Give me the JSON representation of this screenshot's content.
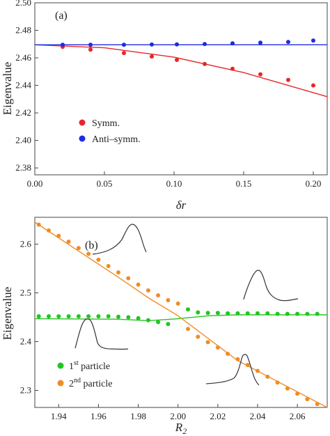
{
  "chart_data": [
    {
      "type": "scatter",
      "panel_label": "(a)",
      "xlabel": "δr",
      "ylabel": "Eigenvalue",
      "xlim": [
        0.0,
        0.21
      ],
      "ylim": [
        2.375,
        2.5
      ],
      "x_ticks": [
        0.0,
        0.05,
        0.1,
        0.15,
        0.2
      ],
      "x_tick_labels": [
        "0.00",
        "0.05",
        "0.10",
        "0.15",
        "0.20"
      ],
      "y_ticks": [
        2.38,
        2.4,
        2.42,
        2.44,
        2.46,
        2.48,
        2.5
      ],
      "y_tick_labels": [
        "2.38",
        "2.40",
        "2.42",
        "2.44",
        "2.46",
        "2.48",
        "2.50"
      ],
      "legend_position": "middle-left",
      "series": [
        {
          "name": "Symm.",
          "color": "#e8262a",
          "points": [
            [
              0.02,
              2.468
            ],
            [
              0.04,
              2.466
            ],
            [
              0.064,
              2.4635
            ],
            [
              0.084,
              2.461
            ],
            [
              0.102,
              2.4585
            ],
            [
              0.122,
              2.4555
            ],
            [
              0.142,
              2.452
            ],
            [
              0.162,
              2.448
            ],
            [
              0.182,
              2.444
            ],
            [
              0.2,
              2.44
            ]
          ]
        },
        {
          "name": "Anti–symm.",
          "color": "#1f2be0",
          "points": [
            [
              0.02,
              2.4695
            ],
            [
              0.04,
              2.4695
            ],
            [
              0.064,
              2.4695
            ],
            [
              0.084,
              2.4697
            ],
            [
              0.102,
              2.4698
            ],
            [
              0.122,
              2.47
            ],
            [
              0.142,
              2.4705
            ],
            [
              0.162,
              2.471
            ],
            [
              0.182,
              2.4715
            ],
            [
              0.2,
              2.4725
            ]
          ]
        }
      ],
      "fit_lines": [
        {
          "series": "Symm.",
          "color": "#e8262a",
          "x": [
            0.0,
            0.05,
            0.1,
            0.15,
            0.21
          ],
          "y": [
            2.4695,
            2.4673,
            2.4605,
            2.4493,
            2.4318
          ]
        },
        {
          "series": "Anti–symm.",
          "color": "#1f2be0",
          "x": [
            0.0,
            0.21
          ],
          "y": [
            2.4695,
            2.4695
          ]
        }
      ]
    },
    {
      "type": "scatter",
      "panel_label": "(b)",
      "xlabel": "R2",
      "ylabel": "Eigenvalue",
      "xlim": [
        1.928,
        2.075
      ],
      "ylim": [
        2.265,
        2.655
      ],
      "x_ticks": [
        1.94,
        1.96,
        1.98,
        2.0,
        2.02,
        2.04,
        2.06
      ],
      "x_tick_labels": [
        "1.94",
        "1.96",
        "1.98",
        "2.00",
        "2.02",
        "2.04",
        "2.06"
      ],
      "y_ticks": [
        2.3,
        2.4,
        2.5,
        2.6
      ],
      "y_tick_labels": [
        "2.3",
        "2.4",
        "2.5",
        "2.6"
      ],
      "legend_position": "bottom-left",
      "series": [
        {
          "name": "1st particle",
          "legend_main": "1",
          "legend_sup": "st",
          "legend_rest": " particle",
          "color": "#22c520",
          "points": [
            [
              1.93,
              2.452
            ],
            [
              1.935,
              2.452
            ],
            [
              1.94,
              2.452
            ],
            [
              1.945,
              2.452
            ],
            [
              1.95,
              2.452
            ],
            [
              1.955,
              2.452
            ],
            [
              1.96,
              2.452
            ],
            [
              1.965,
              2.452
            ],
            [
              1.97,
              2.451
            ],
            [
              1.975,
              2.45
            ],
            [
              1.98,
              2.448
            ],
            [
              1.985,
              2.444
            ],
            [
              1.99,
              2.44
            ],
            [
              1.995,
              2.436
            ],
            [
              2.005,
              2.466
            ],
            [
              2.01,
              2.46
            ],
            [
              2.015,
              2.459
            ],
            [
              2.02,
              2.459
            ],
            [
              2.025,
              2.458
            ],
            [
              2.03,
              2.458
            ],
            [
              2.035,
              2.458
            ],
            [
              2.04,
              2.458
            ],
            [
              2.045,
              2.458
            ],
            [
              2.05,
              2.457
            ],
            [
              2.055,
              2.457
            ],
            [
              2.06,
              2.457
            ],
            [
              2.065,
              2.457
            ],
            [
              2.07,
              2.457
            ]
          ]
        },
        {
          "name": "2nd particle",
          "legend_main": "2",
          "legend_sup": "nd",
          "legend_rest": " particle",
          "color": "#f08c26",
          "points": [
            [
              1.93,
              2.64
            ],
            [
              1.935,
              2.628
            ],
            [
              1.94,
              2.617
            ],
            [
              1.945,
              2.605
            ],
            [
              1.95,
              2.592
            ],
            [
              1.955,
              2.58
            ],
            [
              1.96,
              2.568
            ],
            [
              1.965,
              2.555
            ],
            [
              1.97,
              2.542
            ],
            [
              1.975,
              2.53
            ],
            [
              1.98,
              2.517
            ],
            [
              1.985,
              2.505
            ],
            [
              1.99,
              2.495
            ],
            [
              1.995,
              2.485
            ],
            [
              2.0,
              2.478
            ],
            [
              2.005,
              2.426
            ],
            [
              2.01,
              2.41
            ],
            [
              2.015,
              2.399
            ],
            [
              2.02,
              2.388
            ],
            [
              2.025,
              2.375
            ],
            [
              2.03,
              2.364
            ],
            [
              2.035,
              2.352
            ],
            [
              2.04,
              2.34
            ],
            [
              2.045,
              2.328
            ],
            [
              2.05,
              2.316
            ],
            [
              2.055,
              2.304
            ],
            [
              2.06,
              2.293
            ],
            [
              2.065,
              2.282
            ],
            [
              2.07,
              2.272
            ]
          ]
        }
      ],
      "fit_lines": [
        {
          "series": "1st particle",
          "color": "#22c520",
          "x": [
            1.928,
            1.97,
            1.985,
            2.0,
            2.015,
            2.03,
            2.075
          ],
          "y": [
            2.447,
            2.446,
            2.443,
            2.447,
            2.453,
            2.455,
            2.455
          ]
        },
        {
          "series": "2nd particle",
          "color": "#f08c26",
          "x": [
            1.928,
            1.97,
            1.985,
            2.0,
            2.015,
            2.03,
            2.075
          ],
          "y": [
            2.645,
            2.532,
            2.49,
            2.453,
            2.407,
            2.361,
            2.265
          ]
        }
      ]
    }
  ]
}
